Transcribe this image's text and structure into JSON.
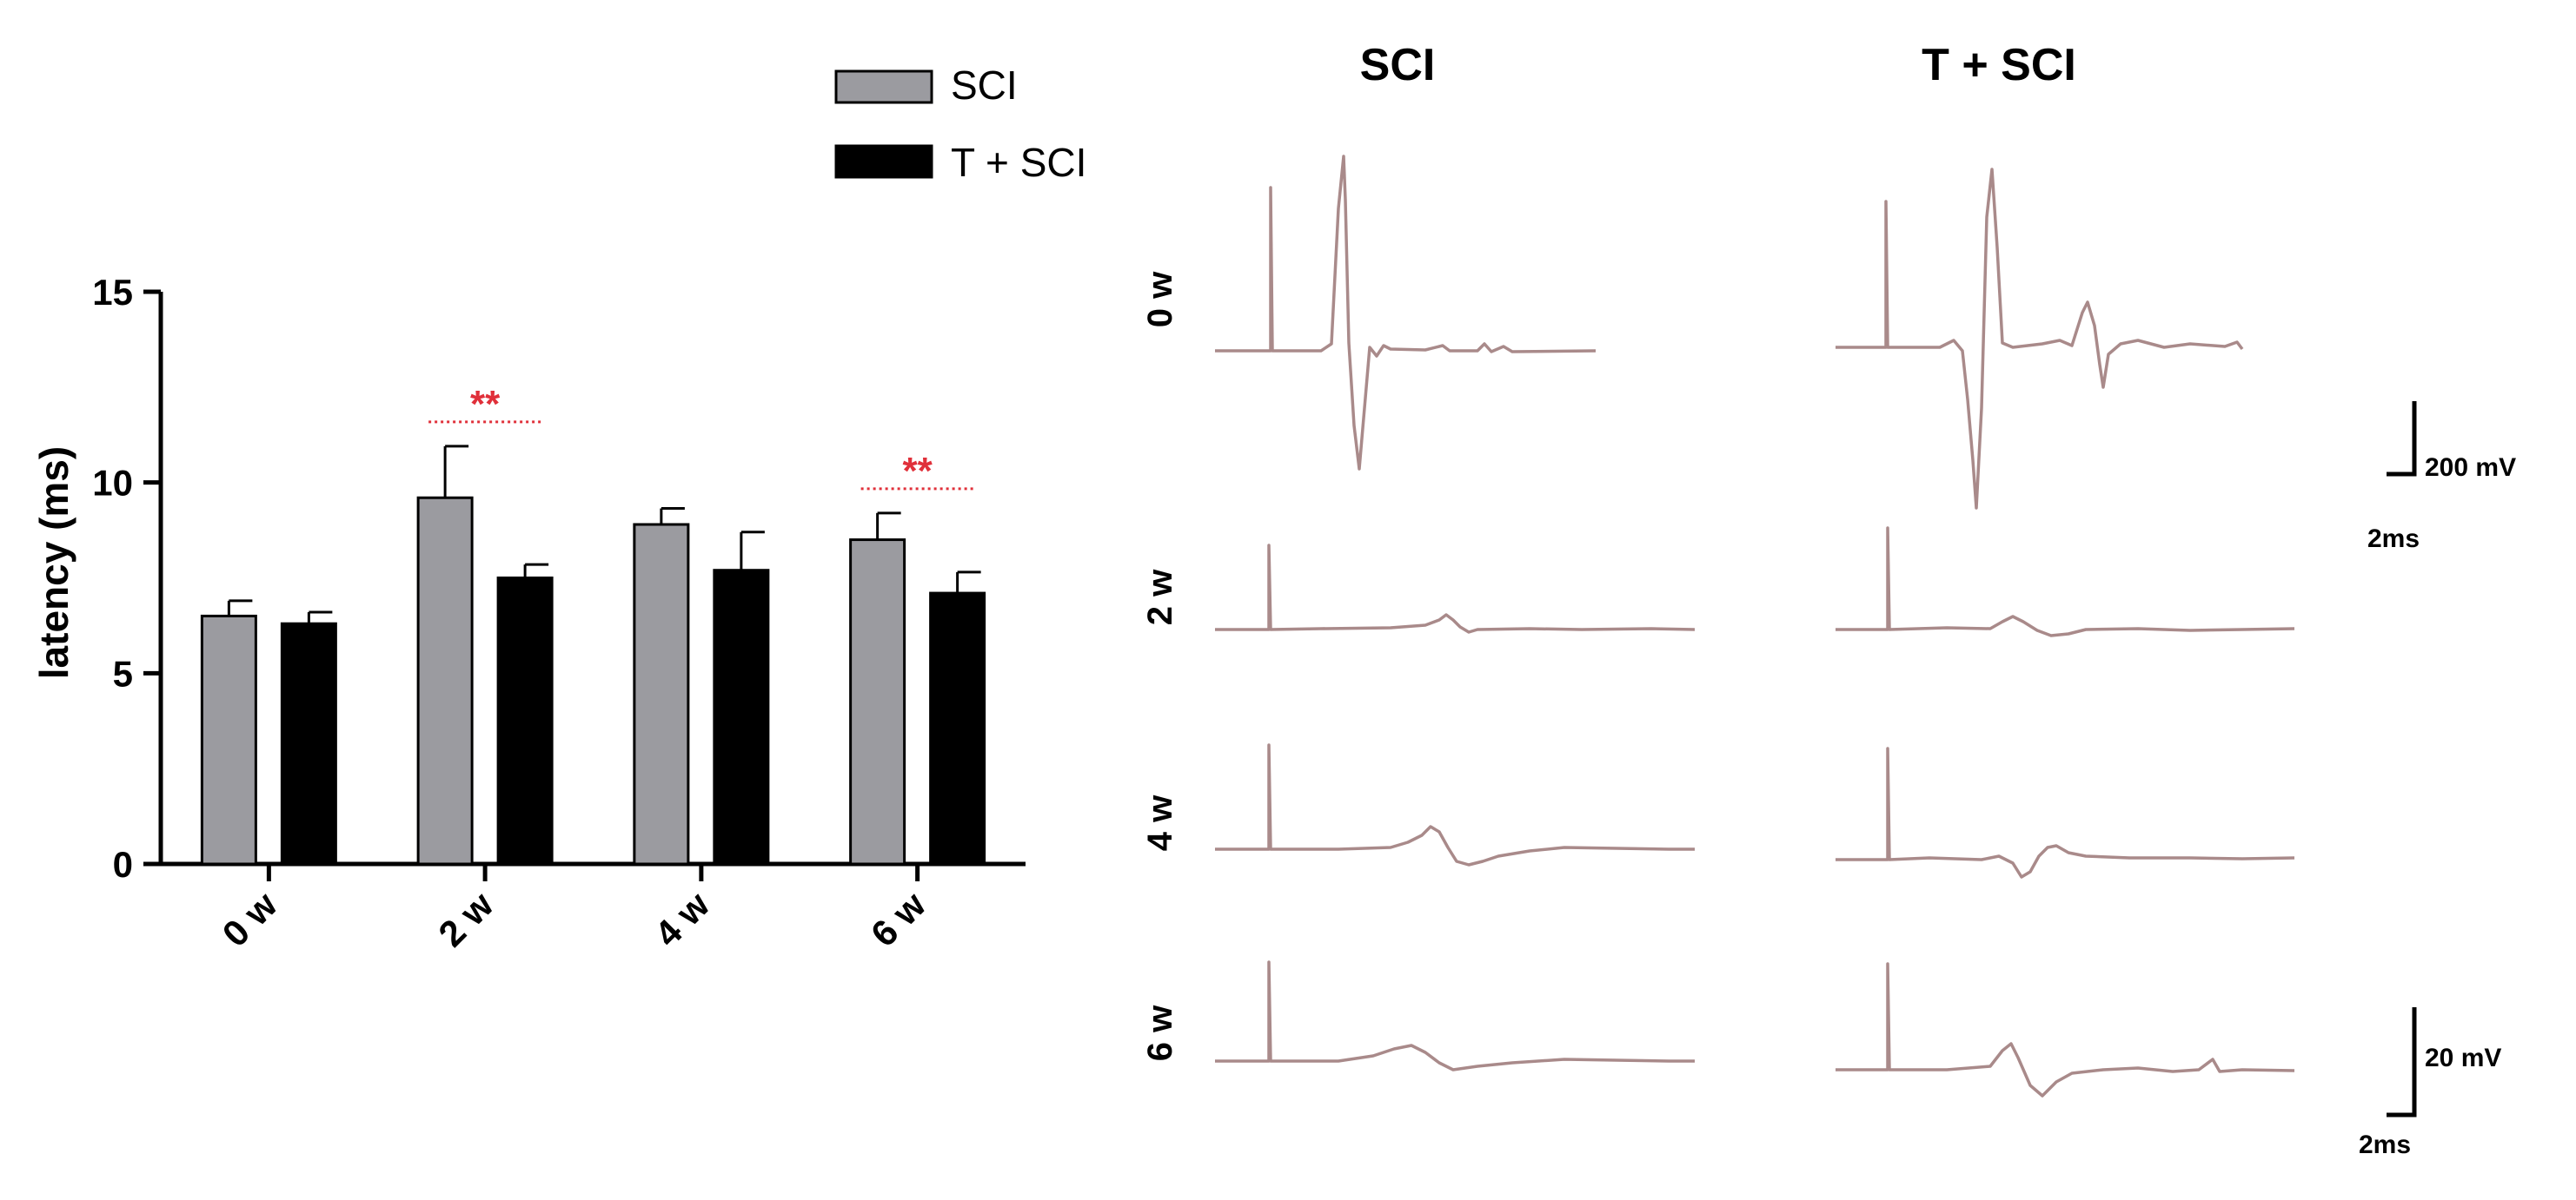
{
  "chart_data": {
    "type": "bar",
    "categories": [
      "0 w",
      "2 w",
      "4 w",
      "6 w"
    ],
    "series": [
      {
        "name": "SCI",
        "values": [
          6.5,
          9.6,
          8.9,
          8.5
        ],
        "errors": [
          0.4,
          1.35,
          0.42,
          0.7
        ],
        "color": "#9b9ba0"
      },
      {
        "name": "T + SCI",
        "values": [
          6.3,
          7.5,
          7.7,
          7.1
        ],
        "errors": [
          0.3,
          0.35,
          1.0,
          0.55
        ],
        "color": "#000000"
      }
    ],
    "ylabel": "latency (ms)",
    "xlabel": "",
    "ylim": [
      0,
      15
    ],
    "yticks": [
      0,
      5,
      10,
      15
    ],
    "grid": false,
    "legend_position": "top-right",
    "significance": [
      {
        "category": "2 w",
        "label": "**",
        "color": "#e0303a"
      },
      {
        "category": "6 w",
        "label": "**",
        "color": "#e0303a"
      }
    ]
  },
  "traces": {
    "column_titles": [
      "SCI",
      "T + SCI"
    ],
    "row_labels": [
      "0 w",
      "2 w",
      "4 w",
      "6 w"
    ],
    "scale_bars": [
      {
        "amplitude": "200 mV",
        "time": "2ms"
      },
      {
        "amplitude": "20 mV",
        "time": "2ms"
      }
    ],
    "trace_color": "#a98a8a"
  }
}
